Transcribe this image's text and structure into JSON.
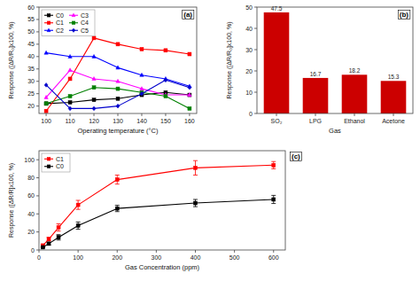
{
  "chart_data": [
    {
      "type": "line",
      "annotation": "(a)",
      "xlabel": "Operating temperature (°C)",
      "ylabel": "Response ([ΔR/R₀]x100, %)",
      "x": [
        100,
        110,
        120,
        130,
        140,
        150,
        160
      ],
      "xlim": [
        97,
        163
      ],
      "ylim": [
        17,
        60
      ],
      "xticks": [
        100,
        110,
        120,
        130,
        140,
        150,
        160
      ],
      "yticks": [
        20,
        25,
        30,
        35,
        40,
        45,
        50,
        55,
        60
      ],
      "legend": "upper left",
      "grid": false,
      "series": [
        {
          "name": "C0",
          "color": "black",
          "marker": "square",
          "values": [
            21.0,
            21.5,
            22.5,
            23.0,
            24.5,
            25.5,
            24.5
          ]
        },
        {
          "name": "C1",
          "color": "red",
          "marker": "square",
          "values": [
            18.0,
            31.0,
            47.5,
            45.0,
            43.0,
            42.5,
            41.0
          ]
        },
        {
          "name": "C2",
          "color": "blue",
          "marker": "triangle",
          "values": [
            41.5,
            40.0,
            40.0,
            35.5,
            32.5,
            31.0,
            28.0
          ]
        },
        {
          "name": "C3",
          "color": "magenta",
          "marker": "triangle",
          "values": [
            23.5,
            34.5,
            31.0,
            30.0,
            27.0,
            24.5,
            24.5
          ]
        },
        {
          "name": "C4",
          "color": "green",
          "marker": "square",
          "values": [
            21.0,
            24.0,
            27.5,
            27.0,
            25.5,
            24.0,
            19.0
          ]
        },
        {
          "name": "C5",
          "color": "#0000cc",
          "marker": "diamond",
          "values": [
            28.5,
            19.0,
            19.0,
            20.0,
            25.0,
            30.5,
            27.5
          ]
        }
      ]
    },
    {
      "type": "bar",
      "annotation": "(b)",
      "xlabel": "Gas",
      "ylabel": "Response ([ΔR/R₀]x100, %)",
      "categories": [
        "SO₂",
        "LPG",
        "Ethanol",
        "Acetone"
      ],
      "values": [
        47.5,
        16.7,
        18.2,
        15.3
      ],
      "color": "#cc0000",
      "ylim": [
        0,
        50
      ],
      "yticks": [
        0,
        10,
        20,
        30,
        40,
        50
      ],
      "data_labels": true,
      "grid": false
    },
    {
      "type": "line",
      "annotation": "(c)",
      "xlabel": "Gas Concentration (ppm)",
      "ylabel": "Response ([ΔR/R]x100, %)",
      "x": [
        10,
        25,
        50,
        100,
        200,
        400,
        600
      ],
      "xlim": [
        0,
        630
      ],
      "ylim": [
        0,
        110
      ],
      "xticks": [
        0,
        100,
        200,
        300,
        400,
        500,
        600
      ],
      "yticks": [
        0,
        20,
        40,
        60,
        80,
        100
      ],
      "legend": "upper left",
      "grid": false,
      "series": [
        {
          "name": "C1",
          "color": "red",
          "marker": "square",
          "values": [
            5.0,
            12.0,
            25.0,
            50.0,
            78.0,
            91.0,
            94.0
          ],
          "yerr": [
            1.0,
            2.0,
            4.0,
            5.0,
            5.0,
            8.0,
            4.0
          ]
        },
        {
          "name": "C0",
          "color": "black",
          "marker": "square",
          "values": [
            3.0,
            7.0,
            14.0,
            27.0,
            46.0,
            52.0,
            56.0
          ],
          "yerr": [
            0.5,
            1.5,
            3.0,
            4.0,
            3.5,
            4.0,
            4.5
          ]
        }
      ]
    }
  ]
}
